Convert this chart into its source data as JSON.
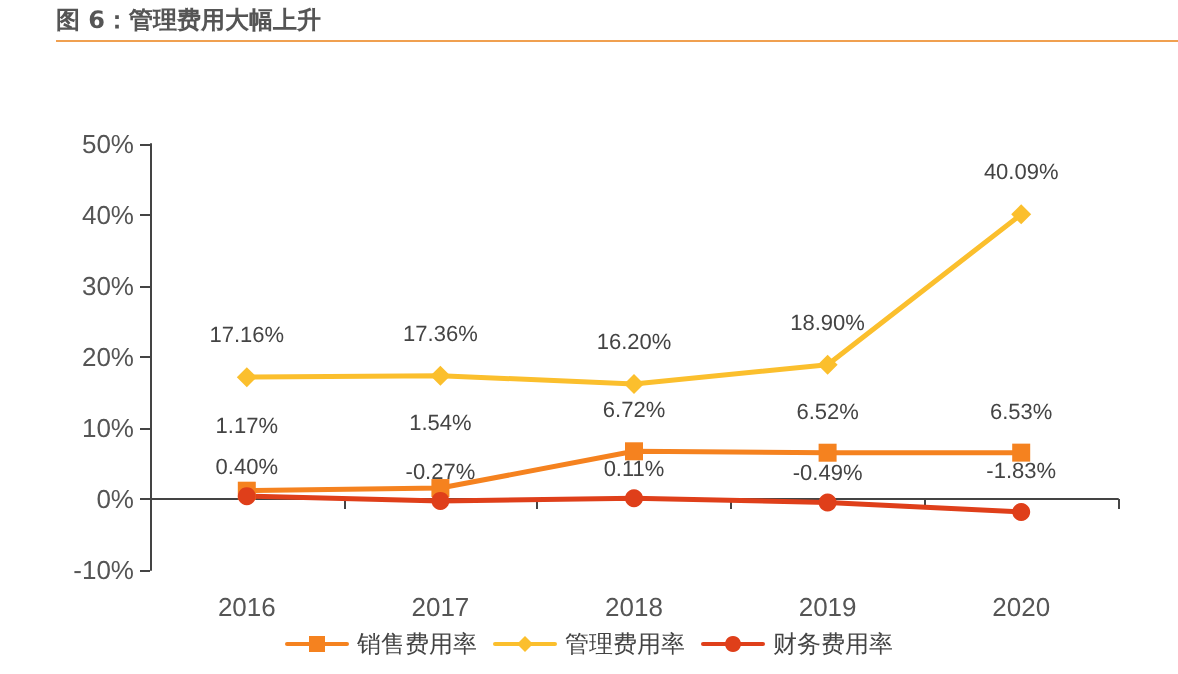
{
  "chart_data": {
    "type": "line",
    "title": "图 6：管理费用大幅上升",
    "categories": [
      "2016",
      "2017",
      "2018",
      "2019",
      "2020"
    ],
    "series": [
      {
        "name": "销售费用率",
        "color": "#f5821f",
        "marker": "square",
        "values": [
          1.17,
          1.54,
          6.72,
          6.52,
          6.53
        ],
        "value_labels": [
          "1.17%",
          "1.54%",
          "6.72%",
          "6.52%",
          "6.53%"
        ]
      },
      {
        "name": "管理费用率",
        "color": "#fbbf2d",
        "marker": "diamond",
        "values": [
          17.16,
          17.36,
          16.2,
          18.9,
          40.09
        ],
        "value_labels": [
          "17.16%",
          "17.36%",
          "16.20%",
          "18.90%",
          "40.09%"
        ]
      },
      {
        "name": "财务费用率",
        "color": "#df3f1a",
        "marker": "circle",
        "values": [
          0.4,
          -0.27,
          0.11,
          -0.49,
          -1.83
        ],
        "value_labels": [
          "0.40%",
          "-0.27%",
          "0.11%",
          "-0.49%",
          "-1.83%"
        ]
      }
    ],
    "ylim": [
      -10,
      50
    ],
    "yticks": [
      {
        "value": -10,
        "label": "-10%"
      },
      {
        "value": 0,
        "label": "0%"
      },
      {
        "value": 10,
        "label": "10%"
      },
      {
        "value": 20,
        "label": "20%"
      },
      {
        "value": 30,
        "label": "30%"
      },
      {
        "value": 40,
        "label": "40%"
      },
      {
        "value": 50,
        "label": "50%"
      }
    ],
    "legend": "bottom",
    "line_style": "solid"
  }
}
